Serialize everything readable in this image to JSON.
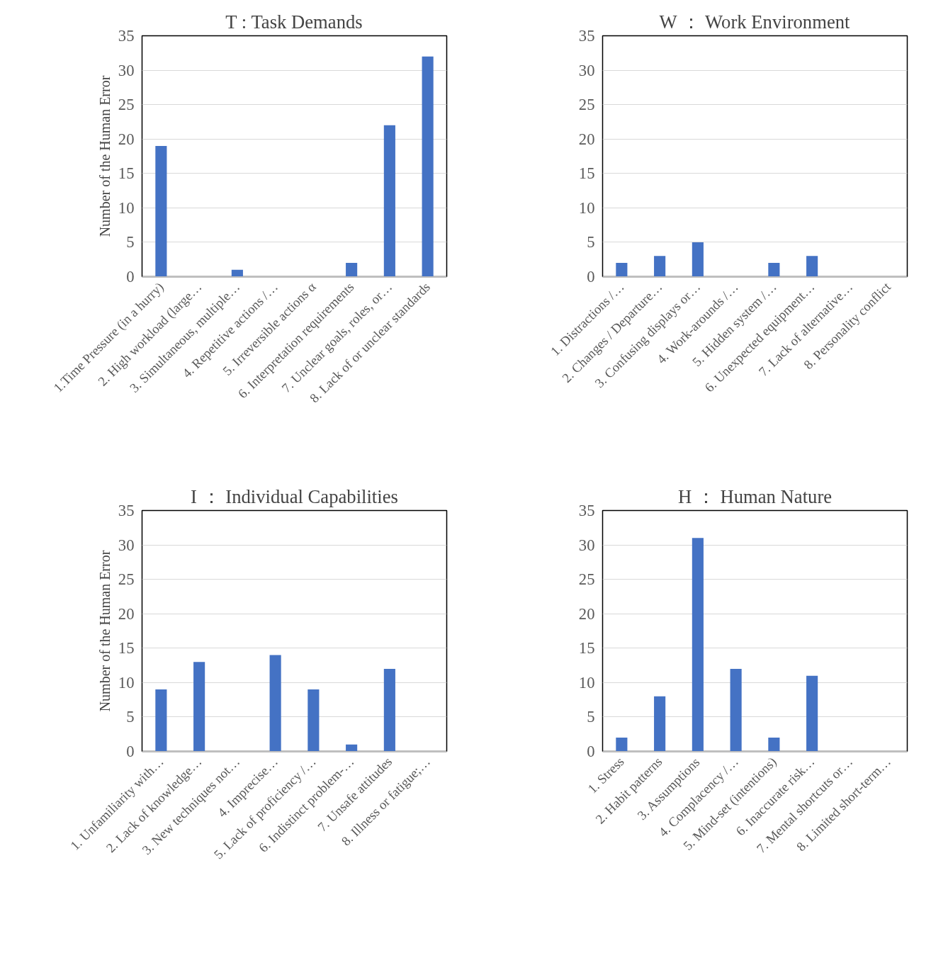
{
  "chart_data": [
    {
      "type": "bar",
      "title": "T : Task Demands",
      "ylabel": "Number of the Human Error",
      "categories": [
        "1.Time Pressure (in a hurry)",
        "2. High workload (large…",
        "3. Simultaneous, multiple…",
        "4. Repetitive actions /…",
        "5. Irreversible actions α",
        "6. Interpretation requirements",
        "7. Unclear goals, roles, or…",
        "8. Lack of or unclear standards"
      ],
      "values": [
        19,
        0,
        1,
        0,
        0,
        2,
        22,
        32
      ],
      "color": "#4472c4",
      "ylim": [
        0,
        35
      ],
      "yticks": [
        0,
        5,
        10,
        15,
        20,
        25,
        30,
        35
      ],
      "grid": "y"
    },
    {
      "type": "bar",
      "title": "W ： Work Environment",
      "categories": [
        "1. Distractions /…",
        "2. Changes / Departure…",
        "3. Confusing displays or…",
        "4. Work-arounds /…",
        "5. Hidden system /…",
        "6. Unexpected equipment…",
        "7. Lack of alternative…",
        "8. Personality conflict"
      ],
      "values": [
        2,
        3,
        5,
        0,
        2,
        3,
        0,
        0
      ],
      "color": "#4472c4",
      "ylim": [
        0,
        35
      ],
      "yticks": [
        0,
        5,
        10,
        15,
        20,
        25,
        30,
        35
      ],
      "grid": "y"
    },
    {
      "type": "bar",
      "title": "I ： Individual Capabilities",
      "ylabel": "Number of the Human Error",
      "categories": [
        "1. Unfamiliarity with…",
        "2. Lack of knowledge…",
        "3. New techniques not…",
        "4. Imprecise…",
        "5. Lack of proficiency /…",
        "6. Indistinct problem-…",
        "7. Unsafe attitudes",
        "8. Illness or fatigue;…"
      ],
      "values": [
        9,
        13,
        0,
        14,
        9,
        1,
        12,
        0
      ],
      "color": "#4472c4",
      "ylim": [
        0,
        35
      ],
      "yticks": [
        0,
        5,
        10,
        15,
        20,
        25,
        30,
        35
      ],
      "grid": "y"
    },
    {
      "type": "bar",
      "title": "H ： Human Nature",
      "categories": [
        "1. Stress",
        "2. Habit patterns",
        "3. Assumptions",
        "4. Complacency /…",
        "5. Mind-set (intentions)",
        "6. Inaccurate risk…",
        "7. Mental shortcuts or…",
        "8. Limited short-term…"
      ],
      "values": [
        2,
        8,
        31,
        12,
        2,
        11,
        0,
        0
      ],
      "color": "#4472c4",
      "ylim": [
        0,
        35
      ],
      "yticks": [
        0,
        5,
        10,
        15,
        20,
        25,
        30,
        35
      ],
      "grid": "y"
    }
  ]
}
